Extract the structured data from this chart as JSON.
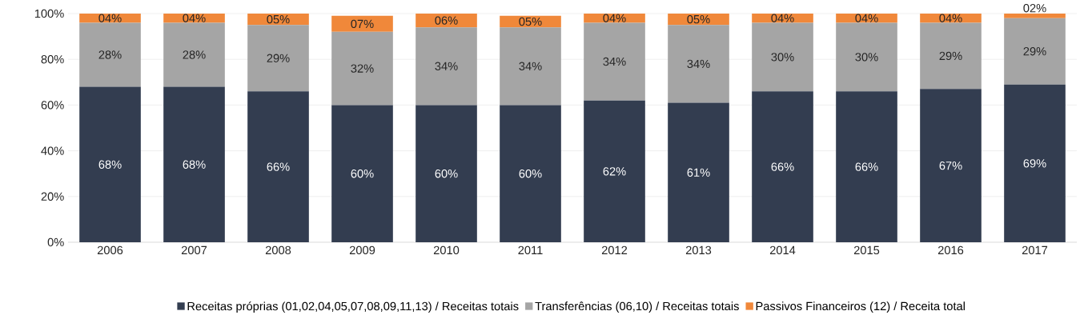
{
  "chart_data": {
    "type": "bar",
    "stacked": true,
    "categories": [
      "2006",
      "2007",
      "2008",
      "2009",
      "2010",
      "2011",
      "2012",
      "2013",
      "2014",
      "2015",
      "2016",
      "2017"
    ],
    "series": [
      {
        "name": "Receitas próprias (01,02,04,05,07,08,09,11,13) / Receitas totais",
        "color": "#333d50",
        "values": [
          68,
          68,
          66,
          60,
          60,
          60,
          62,
          61,
          66,
          66,
          67,
          69
        ],
        "value_labels": [
          "68%",
          "68%",
          "66%",
          "60%",
          "60%",
          "60%",
          "62%",
          "61%",
          "66%",
          "66%",
          "67%",
          "69%"
        ]
      },
      {
        "name": "Transferências (06,10) / Receitas totais",
        "color": "#a5a5a5",
        "values": [
          28,
          28,
          29,
          32,
          34,
          34,
          34,
          34,
          30,
          30,
          29,
          29
        ],
        "value_labels": [
          "28%",
          "28%",
          "29%",
          "32%",
          "34%",
          "34%",
          "34%",
          "34%",
          "30%",
          "30%",
          "29%",
          "29%"
        ]
      },
      {
        "name": "Passivos Financeiros (12) / Receita total",
        "color": "#f0883a",
        "values": [
          4,
          4,
          5,
          7,
          6,
          5,
          4,
          5,
          4,
          4,
          4,
          2
        ],
        "value_labels": [
          "04%",
          "04%",
          "05%",
          "07%",
          "06%",
          "05%",
          "04%",
          "05%",
          "04%",
          "04%",
          "04%",
          "02%"
        ]
      }
    ],
    "ylim": [
      0,
      100
    ],
    "yticks": [
      {
        "value": 0,
        "label": "0%"
      },
      {
        "value": 20,
        "label": "20%"
      },
      {
        "value": 40,
        "label": "40%"
      },
      {
        "value": 60,
        "label": "60%"
      },
      {
        "value": 80,
        "label": "80%"
      },
      {
        "value": 100,
        "label": "100%"
      }
    ],
    "grid": "y",
    "legend": "bottom"
  }
}
